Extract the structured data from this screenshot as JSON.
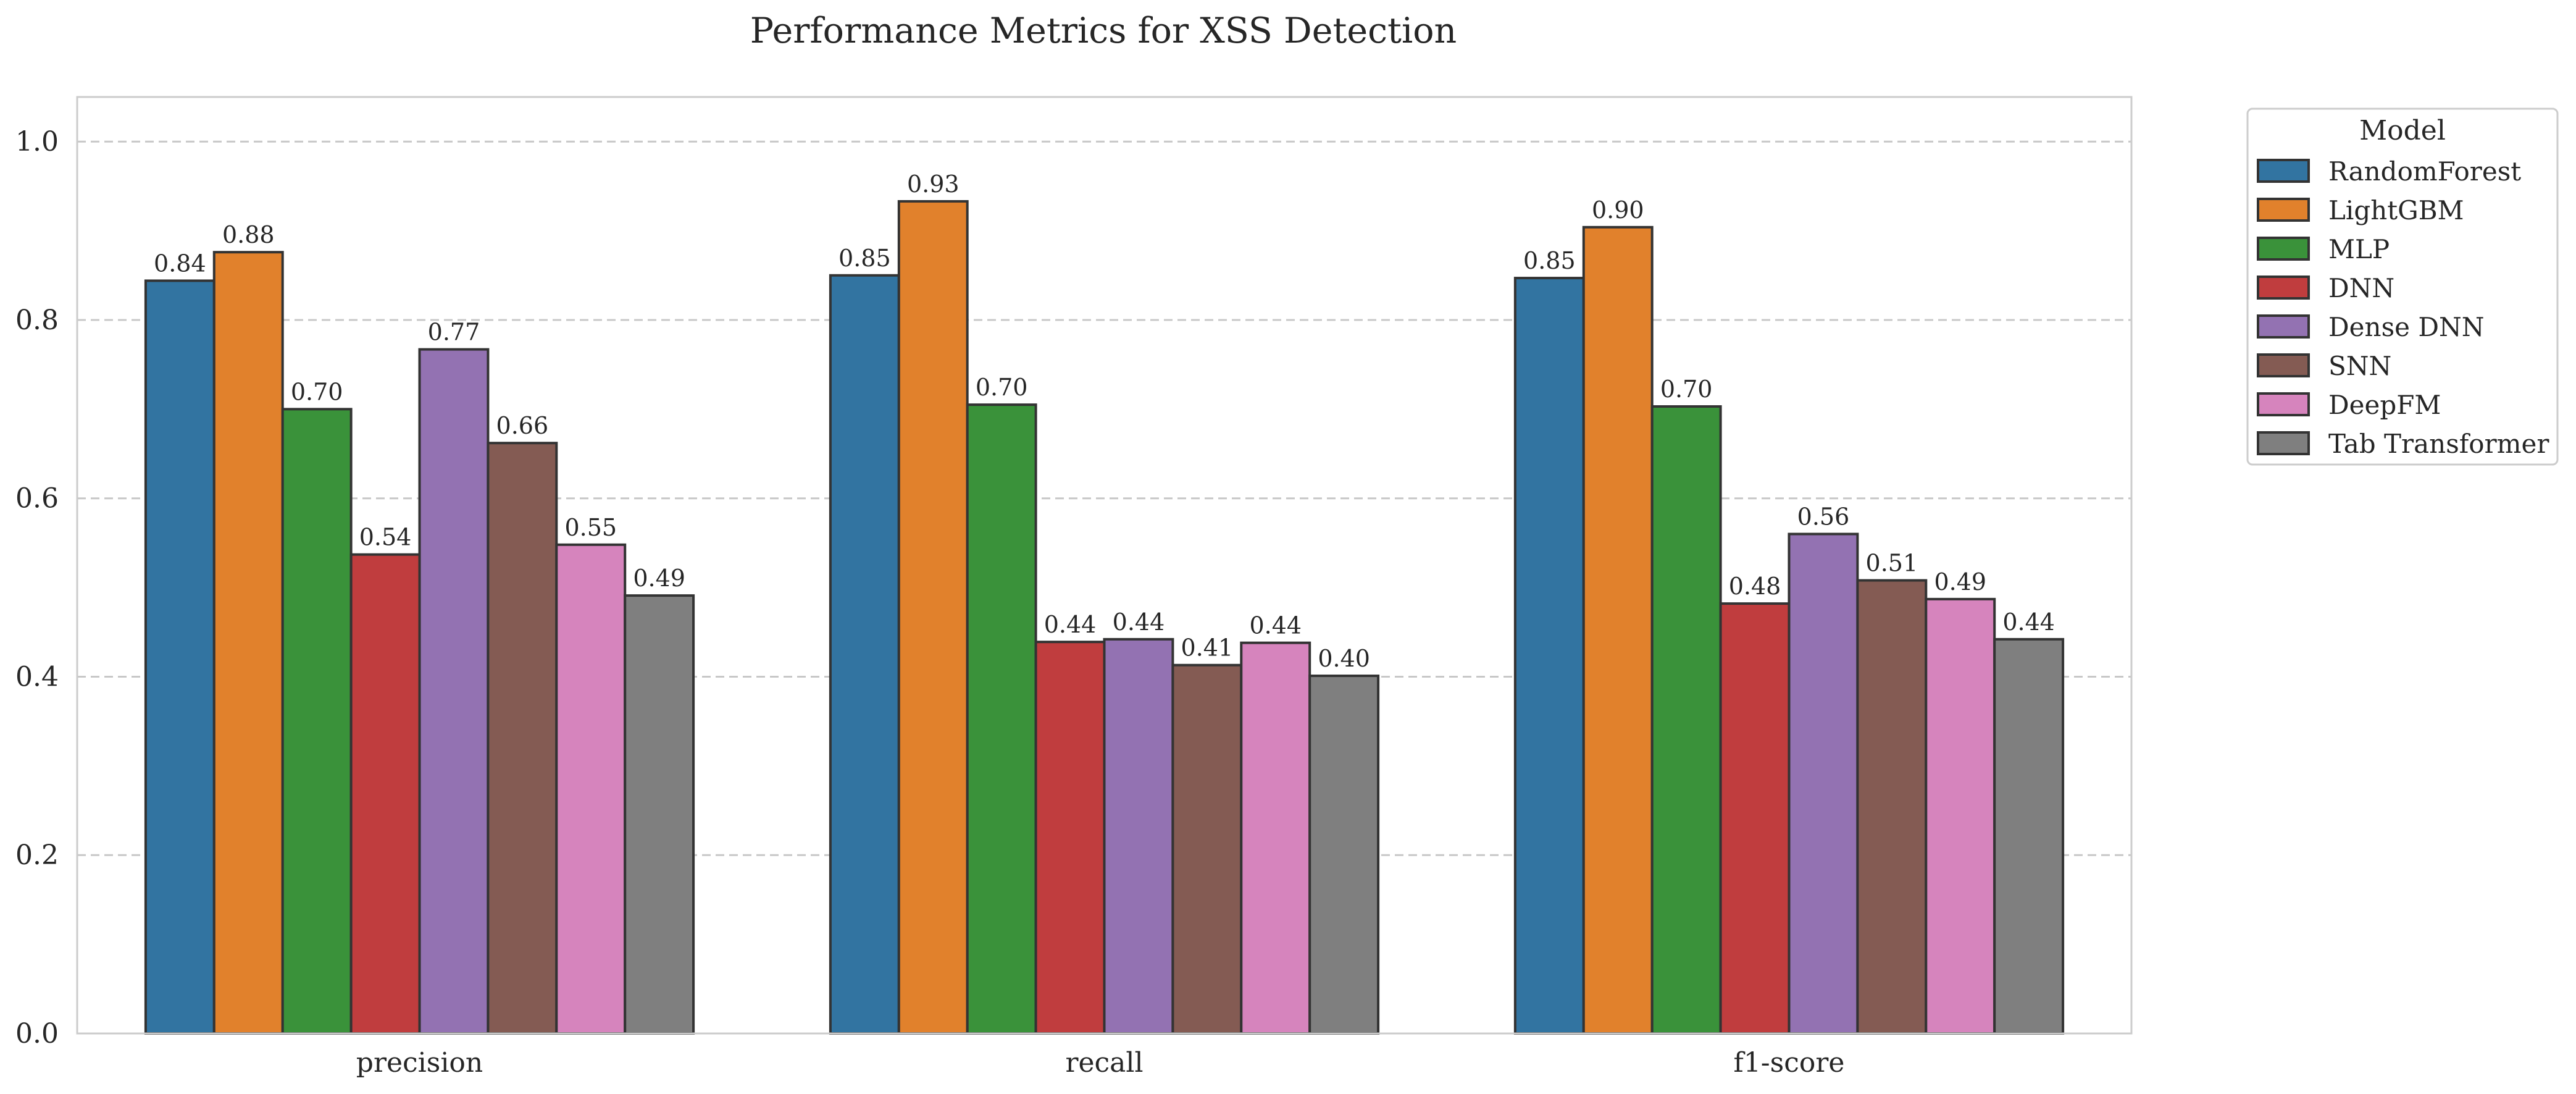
{
  "chart_data": {
    "type": "bar",
    "title": "Performance Metrics for XSS Detection",
    "xlabel": "",
    "ylabel": "",
    "categories": [
      "precision",
      "recall",
      "f1-score"
    ],
    "ylim": [
      0,
      1.05
    ],
    "yticks": [
      "0.0",
      "0.2",
      "0.4",
      "0.6",
      "0.8",
      "1.0"
    ],
    "grid": "y-dashed",
    "legend": {
      "title": "Model",
      "placement": "outside-right-top"
    },
    "series": [
      {
        "name": "RandomForest",
        "color": "#3274a1",
        "values": [
          0.844,
          0.85,
          0.847
        ],
        "labels": [
          "0.84",
          "0.85",
          "0.85"
        ]
      },
      {
        "name": "LightGBM",
        "color": "#e1812c",
        "values": [
          0.876,
          0.933,
          0.904
        ],
        "labels": [
          "0.88",
          "0.93",
          "0.90"
        ]
      },
      {
        "name": "MLP",
        "color": "#3a923a",
        "values": [
          0.7,
          0.705,
          0.703
        ],
        "labels": [
          "0.70",
          "0.70",
          "0.70"
        ]
      },
      {
        "name": "DNN",
        "color": "#c03d3e",
        "values": [
          0.537,
          0.439,
          0.482
        ],
        "labels": [
          "0.54",
          "0.44",
          "0.48"
        ]
      },
      {
        "name": "Dense DNN",
        "color": "#9372b2",
        "values": [
          0.767,
          0.442,
          0.56
        ],
        "labels": [
          "0.77",
          "0.44",
          "0.56"
        ]
      },
      {
        "name": "SNN",
        "color": "#845b53",
        "values": [
          0.662,
          0.413,
          0.508
        ],
        "labels": [
          "0.66",
          "0.41",
          "0.51"
        ]
      },
      {
        "name": "DeepFM",
        "color": "#d684bd",
        "values": [
          0.548,
          0.438,
          0.487
        ],
        "labels": [
          "0.55",
          "0.44",
          "0.49"
        ]
      },
      {
        "name": "Tab Transformer",
        "color": "#7f7f7f",
        "values": [
          0.491,
          0.401,
          0.442
        ],
        "labels": [
          "0.49",
          "0.40",
          "0.44"
        ]
      }
    ]
  }
}
